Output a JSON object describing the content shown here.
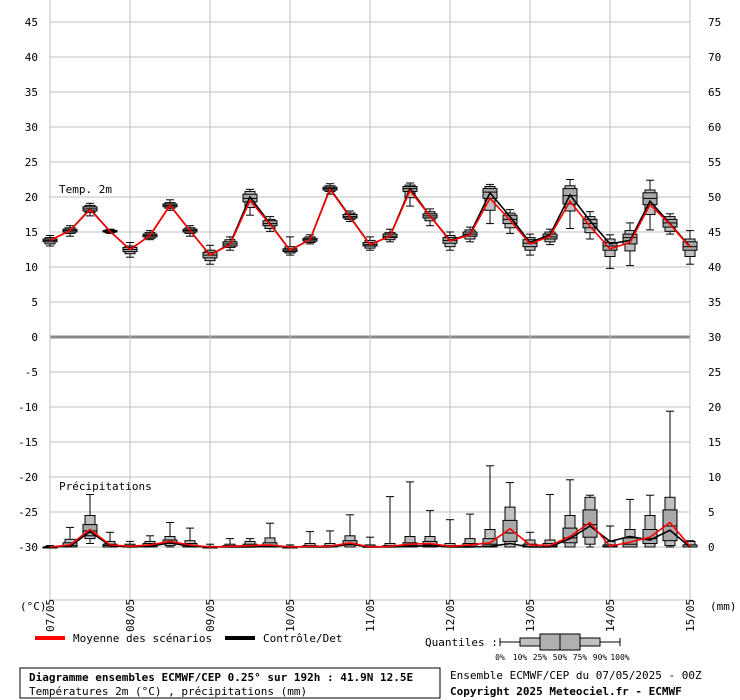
{
  "chart_data": {
    "type": "box",
    "title": "Diagramme ensembles ECMWF/CEP 0.25° sur 192h : 41.9N 12.5E",
    "subtitle": "Températures 2m (°C) , précipitations (mm)",
    "run_info": "Ensemble ECMWF/CEP du 07/05/2025 - 00Z",
    "copyright": "Copyright 2025 Meteociel.fr - ECMWF",
    "panel_temp_label": "Temp. 2m",
    "panel_precip_label": "Précipitations",
    "left_unit": "(°C)",
    "right_unit": "(mm)",
    "left_ticks": [
      "45",
      "40",
      "35",
      "30",
      "25",
      "20",
      "15",
      "10",
      "5",
      "0",
      "-5",
      "-10",
      "-15",
      "-20",
      "-25",
      "-30"
    ],
    "right_ticks": [
      "75",
      "70",
      "65",
      "60",
      "55",
      "50",
      "45",
      "40",
      "35",
      "30",
      "25",
      "20",
      "15",
      "10",
      "5",
      "0"
    ],
    "x_dates": [
      "07/05",
      "08/05",
      "09/05",
      "10/05",
      "11/05",
      "12/05",
      "13/05",
      "14/05",
      "15/05"
    ],
    "legend": {
      "mean": "Moyenne des scénarios",
      "control": "Contrôle/Det",
      "quantiles_label": "Quantiles :",
      "quantile_values": [
        "0%",
        "10%",
        "25%",
        "50%",
        "75%",
        "90%",
        "100%"
      ]
    },
    "colors": {
      "mean": "#ff0000",
      "control": "#000000",
      "box": "#c0c0c0",
      "grid": "#c0c0c0"
    },
    "temperature": {
      "x": [
        "07/05 00h",
        "07/05 06h",
        "07/05 12h",
        "07/05 18h",
        "08/05 00h",
        "08/05 06h",
        "08/05 12h",
        "08/05 18h",
        "09/05 00h",
        "09/05 06h",
        "09/05 12h",
        "09/05 18h",
        "10/05 00h",
        "10/05 06h",
        "10/05 12h",
        "10/05 18h",
        "11/05 00h",
        "11/05 06h",
        "11/05 12h",
        "11/05 18h",
        "12/05 00h",
        "12/05 06h",
        "12/05 12h",
        "12/05 18h",
        "13/05 00h",
        "13/05 06h",
        "13/05 12h",
        "13/05 18h",
        "14/05 00h",
        "14/05 06h",
        "14/05 12h",
        "14/05 18h",
        "15/05 00h"
      ],
      "median": [
        13.8,
        15.2,
        18.3,
        15.1,
        12.5,
        14.5,
        18.8,
        15.2,
        11.7,
        13.3,
        19.8,
        16.2,
        12.4,
        13.9,
        21.2,
        17.2,
        13.2,
        14.4,
        21.2,
        17.3,
        13.8,
        14.7,
        20.7,
        16.8,
        13.4,
        14.3,
        20.2,
        16.2,
        13.0,
        14.2,
        19.8,
        16.3,
        12.9
      ],
      "mean": [
        13.8,
        15.2,
        18.2,
        15.1,
        12.5,
        14.5,
        18.8,
        15.2,
        11.7,
        13.2,
        19.5,
        16.1,
        12.4,
        13.9,
        21.1,
        17.1,
        13.2,
        14.4,
        20.9,
        17.3,
        13.7,
        14.6,
        19.8,
        16.7,
        13.3,
        14.4,
        19.4,
        15.8,
        12.6,
        13.5,
        18.9,
        16.1,
        12.8
      ],
      "control": [
        13.8,
        15.2,
        18.3,
        15.1,
        12.5,
        14.5,
        18.8,
        15.2,
        11.7,
        13.3,
        20.0,
        16.2,
        12.4,
        13.9,
        21.2,
        17.2,
        13.2,
        14.4,
        21.2,
        17.3,
        13.8,
        14.7,
        20.6,
        17.2,
        13.5,
        14.6,
        20.3,
        16.6,
        13.3,
        13.8,
        19.4,
        16.2,
        12.9
      ],
      "q0": [
        13.0,
        14.4,
        17.3,
        14.8,
        11.4,
        13.9,
        18.1,
        14.4,
        10.4,
        12.4,
        17.4,
        15.1,
        11.7,
        13.3,
        20.4,
        16.5,
        12.4,
        13.6,
        18.7,
        15.9,
        12.4,
        13.6,
        16.2,
        14.8,
        11.7,
        13.2,
        15.5,
        14.0,
        9.8,
        10.2,
        15.3,
        14.7,
        10.4
      ],
      "q10": [
        13.3,
        14.8,
        17.8,
        14.9,
        11.9,
        14.1,
        18.4,
        14.8,
        10.9,
        12.8,
        18.5,
        15.5,
        12.0,
        13.5,
        20.8,
        16.8,
        12.7,
        13.9,
        19.9,
        16.6,
        12.9,
        14.0,
        18.1,
        15.6,
        12.4,
        13.6,
        18.0,
        14.9,
        11.5,
        12.3,
        17.5,
        15.1,
        11.5
      ],
      "q25": [
        13.6,
        15.0,
        18.0,
        15.0,
        12.2,
        14.3,
        18.6,
        15.0,
        11.3,
        13.0,
        19.3,
        15.9,
        12.2,
        13.7,
        21.0,
        17.0,
        13.0,
        14.2,
        20.8,
        17.0,
        13.4,
        14.4,
        19.8,
        16.2,
        12.9,
        14.0,
        19.0,
        15.6,
        12.4,
        13.3,
        18.9,
        15.7,
        12.4
      ],
      "q75": [
        14.0,
        15.4,
        18.6,
        15.2,
        12.8,
        14.7,
        19.0,
        15.4,
        12.1,
        13.6,
        20.4,
        16.6,
        12.6,
        14.1,
        21.4,
        17.5,
        13.5,
        14.7,
        21.5,
        17.6,
        14.2,
        15.0,
        21.2,
        17.4,
        13.9,
        14.7,
        21.2,
        16.8,
        13.5,
        14.7,
        20.6,
        16.8,
        13.6
      ],
      "q90": [
        14.2,
        15.6,
        18.8,
        15.3,
        13.0,
        14.9,
        19.2,
        15.6,
        12.4,
        13.9,
        20.8,
        16.8,
        12.9,
        14.3,
        21.6,
        17.7,
        13.8,
        14.9,
        21.7,
        17.9,
        14.5,
        15.3,
        21.5,
        17.7,
        14.2,
        15.0,
        21.6,
        17.2,
        14.0,
        15.2,
        21.0,
        17.2,
        14.0
      ],
      "q100": [
        14.5,
        15.9,
        19.1,
        15.4,
        13.5,
        15.2,
        19.6,
        15.9,
        13.1,
        14.3,
        21.1,
        17.2,
        14.3,
        14.6,
        21.9,
        18.0,
        14.3,
        15.4,
        22.0,
        18.3,
        15.0,
        15.7,
        21.8,
        18.2,
        14.7,
        15.4,
        22.5,
        17.9,
        14.6,
        16.3,
        22.4,
        17.6,
        15.2
      ]
    },
    "precipitation": {
      "x": [
        "07/05 00h",
        "07/05 06h",
        "07/05 12h",
        "07/05 18h",
        "08/05 00h",
        "08/05 06h",
        "08/05 12h",
        "08/05 18h",
        "09/05 00h",
        "09/05 06h",
        "09/05 12h",
        "09/05 18h",
        "10/05 00h",
        "10/05 06h",
        "10/05 12h",
        "10/05 18h",
        "11/05 00h",
        "11/05 06h",
        "11/05 12h",
        "11/05 18h",
        "12/05 00h",
        "12/05 06h",
        "12/05 12h",
        "12/05 18h",
        "13/05 00h",
        "13/05 06h",
        "13/05 12h",
        "13/05 18h",
        "14/05 00h",
        "14/05 06h",
        "14/05 12h",
        "14/05 18h",
        "15/05 00h"
      ],
      "mean": [
        0.0,
        0.3,
        2.5,
        0.3,
        0.1,
        0.3,
        0.8,
        0.3,
        0.0,
        0.1,
        0.2,
        0.3,
        0.0,
        0.1,
        0.1,
        0.6,
        0.0,
        0.1,
        0.4,
        0.5,
        0.1,
        0.3,
        0.6,
        2.6,
        0.3,
        0.2,
        1.5,
        3.5,
        0.1,
        0.7,
        1.4,
        3.5,
        0.1
      ],
      "control": [
        0.0,
        0.1,
        2.2,
        0.2,
        0.0,
        0.1,
        0.6,
        0.1,
        0.0,
        0.0,
        0.0,
        0.1,
        0.0,
        0.0,
        0.0,
        0.4,
        0.0,
        0.0,
        0.1,
        0.2,
        0.0,
        0.0,
        0.1,
        0.5,
        0.0,
        0.0,
        1.2,
        3.0,
        0.8,
        1.5,
        1.0,
        2.4,
        0.0
      ],
      "q0": [
        0,
        0,
        0.5,
        0,
        0,
        0,
        0,
        0,
        0,
        0,
        0,
        0,
        0,
        0,
        0,
        0,
        0,
        0,
        0,
        0,
        0,
        0,
        0,
        0,
        0,
        0,
        0,
        0,
        0,
        0,
        0,
        0,
        0
      ],
      "q10": [
        0,
        0,
        1.2,
        0,
        0,
        0,
        0.2,
        0,
        0,
        0,
        0,
        0,
        0,
        0,
        0,
        0,
        0,
        0,
        0,
        0,
        0,
        0,
        0,
        0,
        0,
        0,
        0,
        0.4,
        0,
        0,
        0,
        0.2,
        0
      ],
      "q25": [
        0,
        0,
        1.6,
        0,
        0,
        0,
        0.5,
        0,
        0,
        0,
        0,
        0,
        0,
        0,
        0,
        0.3,
        0,
        0,
        0,
        0,
        0,
        0,
        0,
        0.8,
        0,
        0,
        0.6,
        1.4,
        0,
        0,
        0.5,
        0.9,
        0
      ],
      "median": [
        0,
        0.2,
        2.3,
        0.2,
        0,
        0.2,
        0.7,
        0.2,
        0,
        0,
        0,
        0.2,
        0,
        0,
        0,
        0.5,
        0,
        0,
        0.2,
        0.3,
        0,
        0.1,
        0.4,
        2.0,
        0,
        0.1,
        1.3,
        3.2,
        0.1,
        0.4,
        1.2,
        3.0,
        0
      ],
      "q75": [
        0,
        0.6,
        3.2,
        0.4,
        0.2,
        0.5,
        1.0,
        0.5,
        0,
        0.2,
        0.4,
        0.6,
        0,
        0.2,
        0.2,
        0.9,
        0.1,
        0.2,
        0.6,
        0.8,
        0.2,
        0.5,
        1.2,
        3.8,
        0.4,
        0.5,
        2.7,
        5.3,
        0.3,
        1.3,
        2.5,
        5.3,
        0.3
      ],
      "q90": [
        0.1,
        1.1,
        4.5,
        0.8,
        0.4,
        0.8,
        1.5,
        0.9,
        0.1,
        0.4,
        0.8,
        1.3,
        0.1,
        0.5,
        0.5,
        1.6,
        0.3,
        0.5,
        1.5,
        1.5,
        0.5,
        1.2,
        2.5,
        5.7,
        1.0,
        1.0,
        4.5,
        7.1,
        0.8,
        2.5,
        4.5,
        7.1,
        0.8
      ],
      "q100": [
        0.2,
        2.8,
        7.5,
        2.1,
        0.8,
        1.6,
        3.5,
        2.7,
        0.4,
        1.2,
        1.2,
        3.4,
        0.3,
        2.2,
        2.3,
        4.6,
        1.4,
        7.2,
        9.3,
        5.2,
        3.9,
        4.7,
        11.6,
        9.2,
        2.1,
        7.5,
        9.6,
        7.4,
        3.0,
        6.8,
        7.4,
        19.4,
        0.9
      ]
    }
  }
}
